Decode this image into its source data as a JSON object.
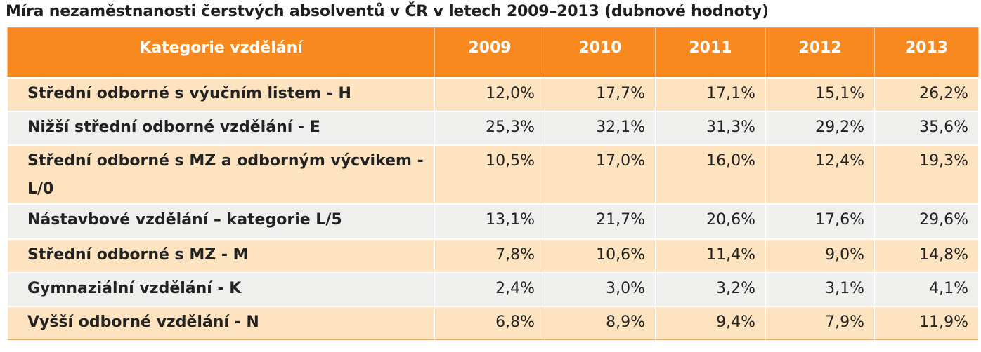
{
  "title": "Míra nezaměstnanosti čerstvých absolventů v ČR v letech 2009–2013 (dubnové hodnoty)",
  "colors": {
    "header_bg": "#f7891f",
    "row_odd_bg": "#fde3bf",
    "row_even_bg": "#efefed",
    "header_text": "#ffffff"
  },
  "table": {
    "headers": [
      "Kategorie vzdělání",
      "2009",
      "2010",
      "2011",
      "2012",
      "2013"
    ],
    "rows": [
      {
        "category": "Střední odborné s výučním listem - H",
        "values": [
          "12,0%",
          "17,7%",
          "17,1%",
          "15,1%",
          "26,2%"
        ]
      },
      {
        "category": "Nižší střední odborné vzdělání - E",
        "values": [
          "25,3%",
          "32,1%",
          "31,3%",
          "29,2%",
          "35,6%"
        ]
      },
      {
        "category": "Střední odborné s MZ a odborným výcvikem - L/0",
        "values": [
          "10,5%",
          "17,0%",
          "16,0%",
          "12,4%",
          "19,3%"
        ]
      },
      {
        "category": "Nástavbové vzdělání – kategorie L/5",
        "values": [
          "13,1%",
          "21,7%",
          "20,6%",
          "17,6%",
          "29,6%"
        ]
      },
      {
        "category": "Střední odborné s MZ - M",
        "values": [
          "7,8%",
          "10,6%",
          "11,4%",
          "9,0%",
          "14,8%"
        ]
      },
      {
        "category": "Gymnaziální vzdělání - K",
        "values": [
          "2,4%",
          "3,0%",
          "3,2%",
          "3,1%",
          "4,1%"
        ]
      },
      {
        "category": "Vyšší odborné vzdělání - N",
        "values": [
          "6,8%",
          "8,9%",
          "9,4%",
          "7,9%",
          "11,9%"
        ]
      }
    ]
  }
}
